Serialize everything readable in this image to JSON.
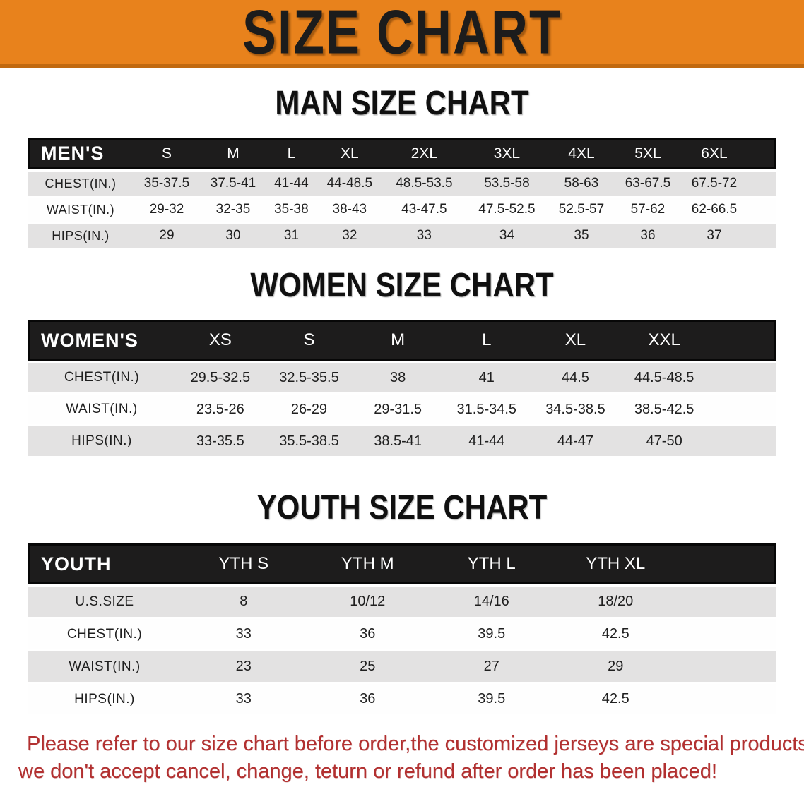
{
  "banner": {
    "title": "SIZE CHART"
  },
  "sections": [
    {
      "title": "MAN SIZE CHART",
      "header_label": "MEN'S",
      "columns": [
        "S",
        "M",
        "L",
        "XL",
        "2XL",
        "3XL",
        "4XL",
        "5XL",
        "6XL"
      ],
      "rows": [
        {
          "label": "CHEST(IN.)",
          "values": [
            "35-37.5",
            "37.5-41",
            "41-44",
            "44-48.5",
            "48.5-53.5",
            "53.5-58",
            "58-63",
            "63-67.5",
            "67.5-72"
          ]
        },
        {
          "label": "WAIST(IN.)",
          "values": [
            "29-32",
            "32-35",
            "35-38",
            "38-43",
            "43-47.5",
            "47.5-52.5",
            "52.5-57",
            "57-62",
            "62-66.5"
          ]
        },
        {
          "label": "HIPS(IN.)",
          "values": [
            "29",
            "30",
            "31",
            "32",
            "33",
            "34",
            "35",
            "36",
            "37"
          ]
        }
      ]
    },
    {
      "title": "WOMEN SIZE CHART",
      "header_label": "WOMEN'S",
      "columns": [
        "XS",
        "S",
        "M",
        "L",
        "XL",
        "XXL"
      ],
      "rows": [
        {
          "label": "CHEST(IN.)",
          "values": [
            "29.5-32.5",
            "32.5-35.5",
            "38",
            "41",
            "44.5",
            "44.5-48.5"
          ]
        },
        {
          "label": "WAIST(IN.)",
          "values": [
            "23.5-26",
            "26-29",
            "29-31.5",
            "31.5-34.5",
            "34.5-38.5",
            "38.5-42.5"
          ]
        },
        {
          "label": "HIPS(IN.)",
          "values": [
            "33-35.5",
            "35.5-38.5",
            "38.5-41",
            "41-44",
            "44-47",
            "47-50"
          ]
        }
      ]
    },
    {
      "title": "YOUTH SIZE CHART",
      "header_label": "YOUTH",
      "columns": [
        "YTH S",
        "YTH M",
        "YTH L",
        "YTH XL"
      ],
      "rows": [
        {
          "label": "U.S.SIZE",
          "values": [
            "8",
            "10/12",
            "14/16",
            "18/20"
          ]
        },
        {
          "label": "CHEST(IN.)",
          "values": [
            "33",
            "36",
            "39.5",
            "42.5"
          ]
        },
        {
          "label": "WAIST(IN.)",
          "values": [
            "23",
            "25",
            "27",
            "29"
          ]
        },
        {
          "label": "HIPS(IN.)",
          "values": [
            "33",
            "36",
            "39.5",
            "42.5"
          ]
        }
      ]
    }
  ],
  "disclaimer": {
    "line1": "Please refer to our size chart before order,the customized jerseys are special products,",
    "line2": "we don't accept cancel, change, teturn or refund after order has been placed!"
  },
  "colors": {
    "banner_bg": "#E8821C",
    "banner_border": "#C1690F",
    "banner_text": "#1C1C1C",
    "table_header_bg": "#1D1C1C",
    "row_gray": "#E3E2E2",
    "disclaimer_red": "#B23030"
  }
}
